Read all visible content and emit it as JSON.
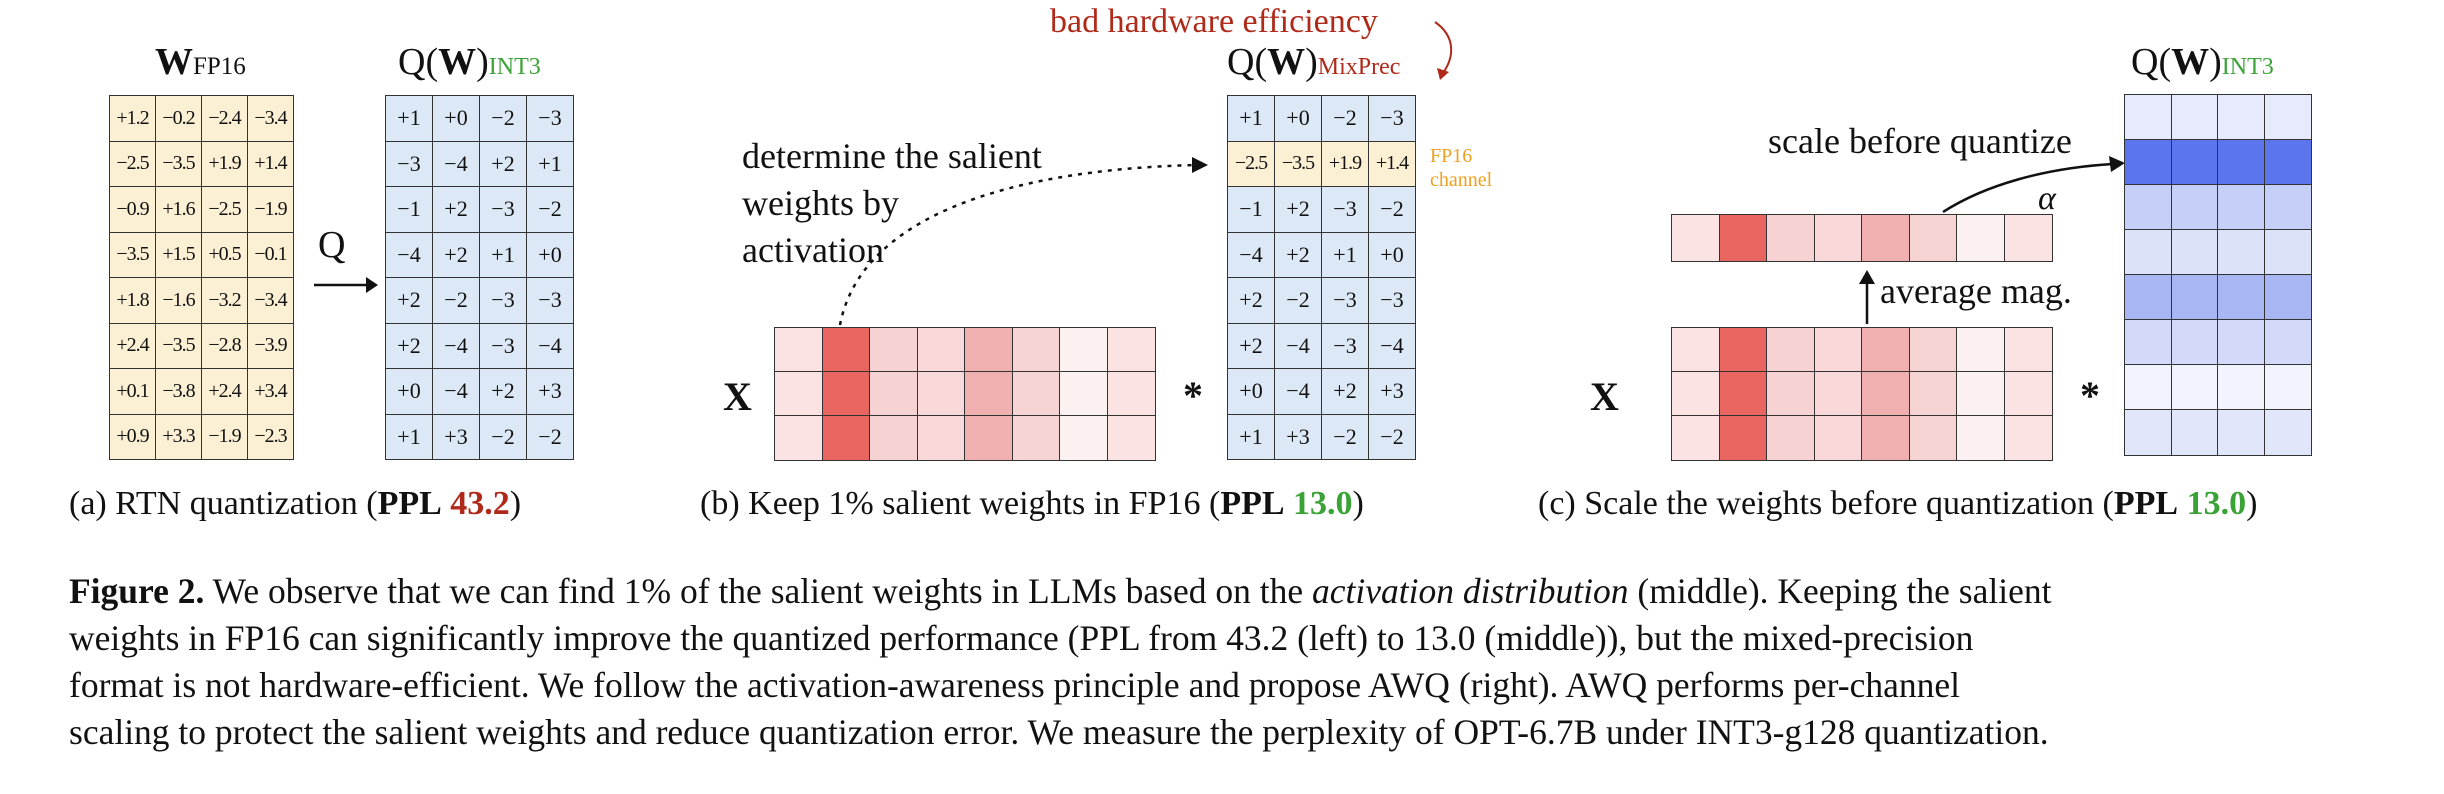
{
  "panel_a": {
    "title_main": "W",
    "title_sub": "FP16",
    "q_title_prefix": "Q(",
    "q_title_w": "W",
    "q_title_suffix": ")",
    "q_title_sub": "INT3",
    "q_label": "Q",
    "fp16_matrix": [
      [
        "+1.2",
        "−0.2",
        "−2.4",
        "−3.4"
      ],
      [
        "−2.5",
        "−3.5",
        "+1.9",
        "+1.4"
      ],
      [
        "−0.9",
        "+1.6",
        "−2.5",
        "−1.9"
      ],
      [
        "−3.5",
        "+1.5",
        "+0.5",
        "−0.1"
      ],
      [
        "+1.8",
        "−1.6",
        "−3.2",
        "−3.4"
      ],
      [
        "+2.4",
        "−3.5",
        "−2.8",
        "−3.9"
      ],
      [
        "+0.1",
        "−3.8",
        "+2.4",
        "+3.4"
      ],
      [
        "+0.9",
        "+3.3",
        "−1.9",
        "−2.3"
      ]
    ],
    "int3_matrix": [
      [
        "+1",
        "+0",
        "−2",
        "−3"
      ],
      [
        "−3",
        "−4",
        "+2",
        "+1"
      ],
      [
        "−1",
        "+2",
        "−3",
        "−2"
      ],
      [
        "−4",
        "+2",
        "+1",
        "+0"
      ],
      [
        "+2",
        "−2",
        "−3",
        "−3"
      ],
      [
        "+2",
        "−4",
        "−3",
        "−4"
      ],
      [
        "+0",
        "−4",
        "+2",
        "+3"
      ],
      [
        "+1",
        "+3",
        "−2",
        "−2"
      ]
    ],
    "caption_prefix": "(a) RTN quantization (",
    "caption_ppl": "PPL",
    "caption_value": "43.2",
    "caption_suffix": ")"
  },
  "panel_b": {
    "bad_efficiency_note": "bad hardware efficiency",
    "q_title_prefix": "Q(",
    "q_title_w": "W",
    "q_title_suffix": ")",
    "q_title_sub": "MixPrec",
    "annotation_lines": [
      "determine the salient",
      "weights by",
      "activation"
    ],
    "fp16_channel_label": [
      "FP16",
      "channel"
    ],
    "x_label": "X",
    "times_label": "*",
    "mixprec_matrix": [
      [
        "+1",
        "+0",
        "−2",
        "−3"
      ],
      [
        "−2.5",
        "−3.5",
        "+1.9",
        "+1.4"
      ],
      [
        "−1",
        "+2",
        "−3",
        "−2"
      ],
      [
        "−4",
        "+2",
        "+1",
        "+0"
      ],
      [
        "+2",
        "−2",
        "−3",
        "−3"
      ],
      [
        "+2",
        "−4",
        "−3",
        "−4"
      ],
      [
        "+0",
        "−4",
        "+2",
        "+3"
      ],
      [
        "+1",
        "+3",
        "−2",
        "−2"
      ]
    ],
    "fp16_row_index": 1,
    "activation_colors": [
      "#fbe3e3",
      "#e8665f",
      "#f7d2d2",
      "#f8d8d8",
      "#f0b0b0",
      "#f6d4d4",
      "#fcf1f1",
      "#fbe3e3"
    ],
    "caption_prefix": "(b) Keep 1% salient weights in FP16 (",
    "caption_ppl": "PPL",
    "caption_value": "13.0",
    "caption_suffix": ")"
  },
  "panel_c": {
    "q_title_prefix": "Q(",
    "q_title_w": "W",
    "q_title_suffix": ")",
    "q_title_sub": "INT3",
    "scale_label": "scale before quantize",
    "alpha_label": "α",
    "avg_label": "average mag.",
    "x_label": "X",
    "times_label": "*",
    "activation_colors": [
      "#fbe3e3",
      "#e8665f",
      "#f7d2d2",
      "#f8d8d8",
      "#f0b0b0",
      "#f6d4d4",
      "#fcf1f1",
      "#fbe3e3"
    ],
    "weight_row_colors": [
      "#e6eafc",
      "#5b75ed",
      "#c6cff8",
      "#dde2fb",
      "#a8b6f3",
      "#d3daf9",
      "#f2f4fd",
      "#e1e6fb"
    ],
    "caption_prefix": "(c) Scale the weights before quantization (",
    "caption_ppl": "PPL",
    "caption_value": "13.0",
    "caption_suffix": ")"
  },
  "figure_caption": {
    "label": "Figure 2.",
    "seg1": " We observe that we can find 1% of the salient weights in LLMs based on the ",
    "seg1_italic": "activation distribution",
    "seg1_end": " (middle). Keeping the salient",
    "line2": "weights in FP16 can significantly improve the quantized performance (PPL from 43.2 (left) to 13.0 (middle)), but the mixed-precision",
    "line3": "format is not hardware-efficient. We follow the activation-awareness principle and propose AWQ (right). AWQ performs per-channel",
    "line4": "scaling to protect the salient weights and reduce quantization error. We measure the perplexity of OPT-6.7B under INT3-g128 quantization."
  },
  "colors": {
    "fp16_cell": "#fbf0d4",
    "int_cell": "#dce8f5",
    "ppl_bad": "#b02a1a",
    "ppl_good": "#3aa336",
    "fp16_channel_text": "#f0a020"
  }
}
